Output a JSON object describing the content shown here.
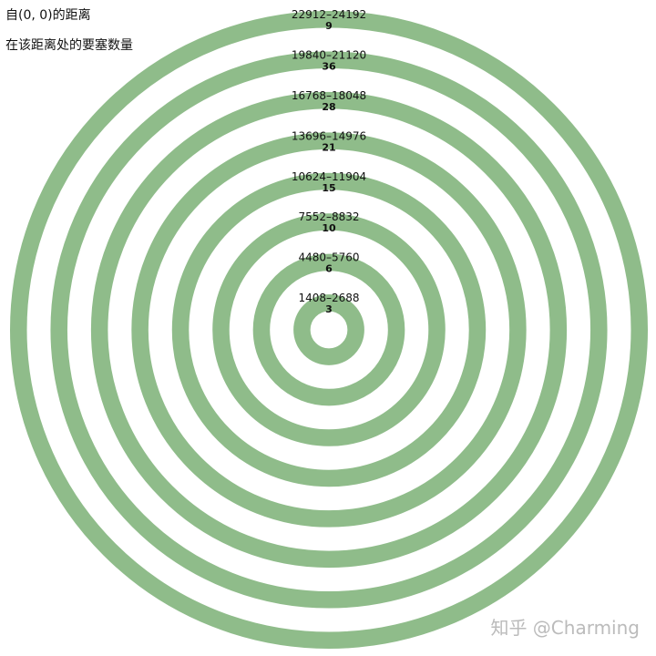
{
  "legend": {
    "distance_label": "自(0, 0)的距离",
    "count_label": "在该距离处的要塞数量"
  },
  "watermark": "知乎 @Charming",
  "colors": {
    "ring": "#8fbc8a",
    "text": "#111111"
  },
  "chart_data": {
    "type": "concentric-rings",
    "rings": [
      {
        "range": "1408–2688",
        "min": 1408,
        "max": 2688,
        "count": 3
      },
      {
        "range": "4480–5760",
        "min": 4480,
        "max": 5760,
        "count": 6
      },
      {
        "range": "7552–8832",
        "min": 7552,
        "max": 8832,
        "count": 10
      },
      {
        "range": "10624–11904",
        "min": 10624,
        "max": 11904,
        "count": 15
      },
      {
        "range": "13696–14976",
        "min": 13696,
        "max": 14976,
        "count": 21
      },
      {
        "range": "16768–18048",
        "min": 16768,
        "max": 18048,
        "count": 28
      },
      {
        "range": "19840–21120",
        "min": 19840,
        "max": 21120,
        "count": 36
      },
      {
        "range": "22912–24192",
        "min": 22912,
        "max": 24192,
        "count": 9
      }
    ]
  }
}
